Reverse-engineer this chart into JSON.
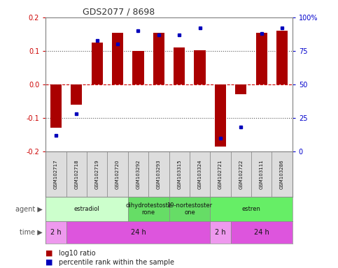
{
  "title": "GDS2077 / 8698",
  "samples": [
    "GSM102717",
    "GSM102718",
    "GSM102719",
    "GSM102720",
    "GSM103292",
    "GSM103293",
    "GSM103315",
    "GSM103324",
    "GSM102721",
    "GSM102722",
    "GSM103111",
    "GSM103286"
  ],
  "log10_ratio": [
    -0.13,
    -0.06,
    0.125,
    0.155,
    0.1,
    0.155,
    0.11,
    0.103,
    -0.185,
    -0.03,
    0.155,
    0.16
  ],
  "percentile_rank": [
    12,
    28,
    83,
    80,
    90,
    87,
    87,
    92,
    10,
    18,
    88,
    92
  ],
  "ylim": [
    -0.2,
    0.2
  ],
  "yticks_left": [
    -0.2,
    -0.1,
    0.0,
    0.1,
    0.2
  ],
  "yticks_right": [
    0,
    25,
    50,
    75,
    100
  ],
  "bar_color": "#aa0000",
  "dot_color": "#0000bb",
  "bar_width": 0.55,
  "agent_groups": [
    {
      "label": "estradiol",
      "start": 0,
      "end": 4,
      "color": "#ccffcc"
    },
    {
      "label": "dihydrotestoste\nrone",
      "start": 4,
      "end": 6,
      "color": "#66dd66"
    },
    {
      "label": "19-nortestoster\none",
      "start": 6,
      "end": 8,
      "color": "#66dd66"
    },
    {
      "label": "estren",
      "start": 8,
      "end": 12,
      "color": "#66ee66"
    }
  ],
  "time_groups": [
    {
      "label": "2 h",
      "start": 0,
      "end": 1,
      "color": "#ee99ee"
    },
    {
      "label": "24 h",
      "start": 1,
      "end": 8,
      "color": "#dd55dd"
    },
    {
      "label": "2 h",
      "start": 8,
      "end": 9,
      "color": "#ee99ee"
    },
    {
      "label": "24 h",
      "start": 9,
      "end": 12,
      "color": "#dd55dd"
    }
  ],
  "legend_bar_label": "log10 ratio",
  "legend_dot_label": "percentile rank within the sample",
  "background_color": "#ffffff",
  "label_agent": "agent",
  "label_time": "time"
}
